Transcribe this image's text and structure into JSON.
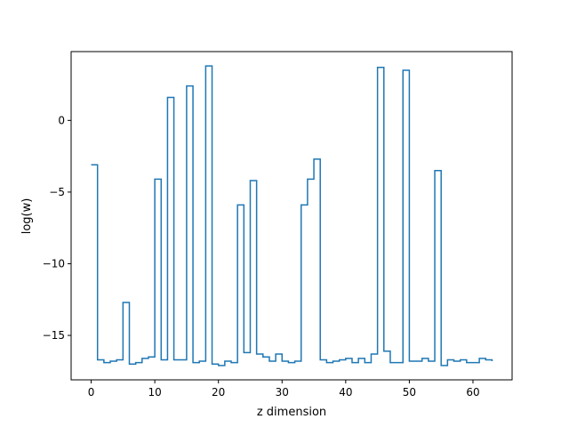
{
  "chart_data": {
    "type": "line",
    "drawstyle": "steps-post",
    "title": "",
    "xlabel": "z dimension",
    "ylabel": "log(w)",
    "xlim": [
      -3.15,
      66.15
    ],
    "ylim": [
      -18.1,
      4.8
    ],
    "xticks": [
      0,
      10,
      20,
      30,
      40,
      50,
      60
    ],
    "yticks": [
      -15,
      -10,
      -5,
      0
    ],
    "grid": false,
    "legend": "none",
    "series": [
      {
        "color": "#1f77b4",
        "x": [
          0,
          1,
          2,
          3,
          4,
          5,
          6,
          7,
          8,
          9,
          10,
          11,
          12,
          13,
          14,
          15,
          16,
          17,
          18,
          19,
          20,
          21,
          22,
          23,
          24,
          25,
          26,
          27,
          28,
          29,
          30,
          31,
          32,
          33,
          34,
          35,
          36,
          37,
          38,
          39,
          40,
          41,
          42,
          43,
          44,
          45,
          46,
          47,
          48,
          49,
          50,
          51,
          52,
          53,
          54,
          55,
          56,
          57,
          58,
          59,
          60,
          61,
          62,
          63
        ],
        "y": [
          -3.1,
          -16.7,
          -16.9,
          -16.8,
          -16.7,
          -12.7,
          -17.0,
          -16.9,
          -16.6,
          -16.5,
          -4.1,
          -16.7,
          1.6,
          -16.7,
          -16.7,
          2.4,
          -16.9,
          -16.8,
          3.8,
          -17.0,
          -17.1,
          -16.8,
          -16.9,
          -5.9,
          -16.2,
          -4.2,
          -16.3,
          -16.5,
          -16.8,
          -16.3,
          -16.8,
          -16.9,
          -16.8,
          -5.9,
          -4.1,
          -2.7,
          -16.7,
          -16.9,
          -16.8,
          -16.7,
          -16.6,
          -16.9,
          -16.6,
          -16.9,
          -16.3,
          3.7,
          -16.1,
          -16.9,
          -16.9,
          3.5,
          -16.8,
          -16.8,
          -16.6,
          -16.8,
          -3.5,
          -17.1,
          -16.7,
          -16.8,
          -16.7,
          -16.9,
          -16.9,
          -16.6,
          -16.7,
          -16.8
        ]
      }
    ]
  }
}
